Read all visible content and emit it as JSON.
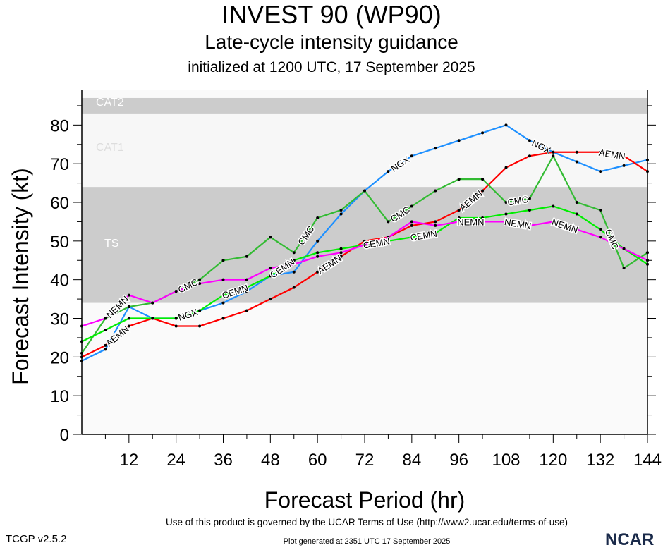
{
  "header": {
    "title": "INVEST 90 (WP90)",
    "subtitle": "Late-cycle intensity guidance",
    "initialized": "initialized at 1200 UTC, 17 September 2025"
  },
  "footer": {
    "terms": "Use of this product is governed by the UCAR Terms of Use (http://www2.ucar.edu/terms-of-use)",
    "version": "TCGP v2.5.2",
    "generated": "Plot generated at 2351 UTC   17 September 2025",
    "logo": "NCAR"
  },
  "chart_data": {
    "type": "line",
    "xlabel": "Forecast Period (hr)",
    "ylabel": "Forecast Intensity (kt)",
    "xlim": [
      0,
      144
    ],
    "ylim": [
      0,
      89
    ],
    "xticks": [
      12,
      24,
      36,
      48,
      60,
      72,
      84,
      96,
      108,
      120,
      132,
      144
    ],
    "yticks": [
      0,
      10,
      20,
      30,
      40,
      50,
      60,
      70,
      80
    ],
    "grid": false,
    "bands": [
      {
        "name": "TS",
        "from": 34,
        "to": 64,
        "color": "#cccccc"
      },
      {
        "name": "CAT1",
        "from": 64,
        "to": 83,
        "color": "#f7f7f7"
      },
      {
        "name": "CAT2",
        "from": 83,
        "to": 87,
        "color": "#cccccc"
      }
    ],
    "x": [
      0,
      6,
      12,
      18,
      24,
      30,
      36,
      42,
      48,
      54,
      60,
      66,
      72,
      78,
      84,
      90,
      96,
      102,
      108,
      114,
      120,
      126,
      132,
      138,
      144
    ],
    "series": [
      {
        "name": "NGX",
        "color": "#1e90ff",
        "values": [
          19,
          22,
          33,
          30,
          30,
          32,
          34,
          37,
          41,
          42,
          50,
          57,
          63,
          68,
          72,
          74,
          76,
          78,
          80,
          76,
          73,
          70.5,
          68,
          69.5,
          71
        ]
      },
      {
        "name": "AEMN",
        "color": "#ff0000",
        "values": [
          20,
          23,
          28,
          30,
          28,
          28,
          30,
          32,
          35,
          38,
          42,
          46,
          50,
          51,
          54,
          55,
          58,
          63,
          69,
          72,
          73,
          73,
          73,
          72,
          68
        ]
      },
      {
        "name": "CMC",
        "color": "#33bb33",
        "values": [
          21,
          30,
          33,
          34,
          37,
          40,
          45,
          46,
          51,
          47,
          56,
          58,
          63,
          55,
          59,
          63,
          66,
          66,
          60,
          61,
          72,
          60,
          58,
          43,
          47
        ]
      },
      {
        "name": "CEMN",
        "color": "#00ee00",
        "values": [
          24,
          27,
          30,
          30,
          30,
          32,
          36,
          38,
          41,
          45,
          47,
          48,
          49,
          50,
          51,
          52,
          56,
          56,
          57,
          58,
          59,
          57,
          53,
          48,
          44
        ]
      },
      {
        "name": "NEMN",
        "color": "#ff00ff",
        "values": [
          28,
          30,
          36,
          34,
          37,
          39,
          40,
          40,
          43,
          44,
          46,
          47,
          49,
          51,
          55,
          54,
          55,
          55,
          55,
          54,
          55,
          53,
          51,
          48,
          45
        ]
      }
    ]
  }
}
